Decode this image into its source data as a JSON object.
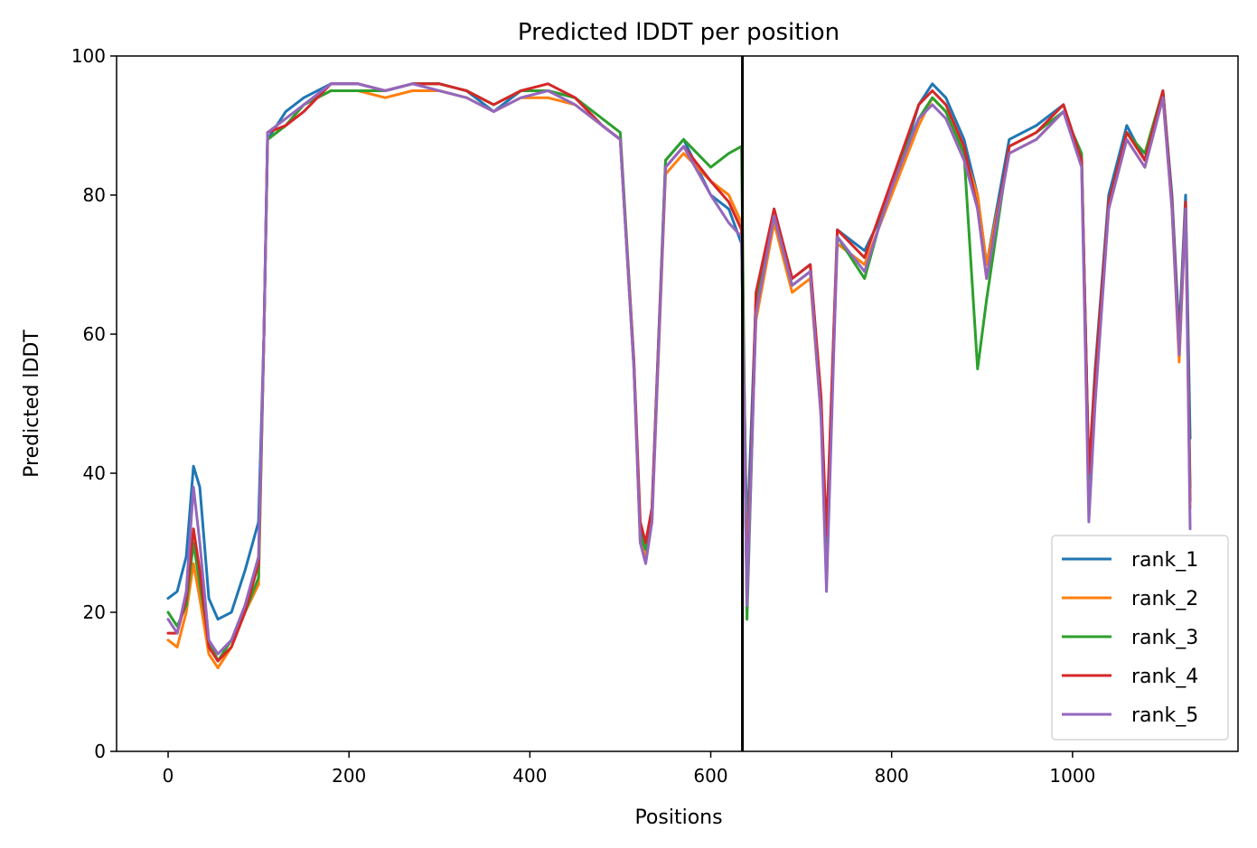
{
  "chart_data": {
    "type": "line",
    "title": "Predicted lDDT per position",
    "xlabel": "Positions",
    "ylabel": "Predicted lDDT",
    "xlim": [
      -57,
      1183
    ],
    "ylim": [
      0,
      100
    ],
    "xticks": [
      0,
      200,
      400,
      600,
      800,
      1000
    ],
    "yticks": [
      0,
      20,
      40,
      60,
      80,
      100
    ],
    "grid": false,
    "legend_position": "lower-right",
    "vertical_line": {
      "x": 635,
      "color": "#000000"
    },
    "colors": [
      "#1f77b4",
      "#ff7f0e",
      "#2ca02c",
      "#d62728",
      "#9467bd"
    ],
    "series": [
      {
        "name": "rank_1",
        "x": [
          0,
          10,
          20,
          28,
          35,
          45,
          55,
          70,
          85,
          100,
          106,
          110,
          130,
          150,
          180,
          210,
          240,
          270,
          300,
          330,
          360,
          390,
          420,
          450,
          480,
          500,
          515,
          522,
          528,
          535,
          550,
          570,
          600,
          620,
          634,
          640,
          650,
          670,
          690,
          710,
          722,
          728,
          740,
          770,
          800,
          830,
          845,
          860,
          880,
          895,
          905,
          930,
          960,
          990,
          1010,
          1018,
          1025,
          1040,
          1060,
          1080,
          1100,
          1110,
          1118,
          1125,
          1130
        ],
        "values": [
          22,
          23,
          28,
          41,
          38,
          22,
          19,
          20,
          26,
          33,
          60,
          88,
          92,
          94,
          96,
          96,
          95,
          96,
          96,
          95,
          92,
          95,
          95,
          94,
          90,
          88,
          55,
          32,
          30,
          35,
          85,
          88,
          80,
          78,
          73,
          30,
          65,
          78,
          68,
          70,
          50,
          30,
          75,
          72,
          80,
          93,
          96,
          94,
          88,
          80,
          70,
          88,
          90,
          93,
          85,
          40,
          55,
          80,
          90,
          85,
          95,
          80,
          60,
          80,
          45
        ]
      },
      {
        "name": "rank_2",
        "x": [
          0,
          10,
          20,
          28,
          35,
          45,
          55,
          70,
          85,
          100,
          106,
          110,
          130,
          150,
          180,
          210,
          240,
          270,
          300,
          330,
          360,
          390,
          420,
          450,
          480,
          500,
          515,
          522,
          528,
          535,
          550,
          570,
          600,
          620,
          634,
          640,
          650,
          670,
          690,
          710,
          722,
          728,
          740,
          770,
          800,
          830,
          845,
          860,
          880,
          895,
          905,
          930,
          960,
          990,
          1010,
          1018,
          1025,
          1040,
          1060,
          1080,
          1100,
          1110,
          1118,
          1125,
          1130
        ],
        "values": [
          16,
          15,
          20,
          27,
          22,
          14,
          12,
          15,
          20,
          24,
          60,
          88,
          90,
          93,
          95,
          95,
          94,
          95,
          95,
          94,
          92,
          94,
          94,
          93,
          90,
          88,
          55,
          30,
          28,
          33,
          83,
          86,
          82,
          80,
          76,
          25,
          62,
          76,
          66,
          68,
          48,
          28,
          73,
          70,
          80,
          90,
          94,
          92,
          86,
          80,
          70,
          86,
          88,
          92,
          85,
          38,
          52,
          78,
          88,
          84,
          94,
          78,
          56,
          78,
          35
        ]
      },
      {
        "name": "rank_3",
        "x": [
          0,
          10,
          20,
          28,
          35,
          45,
          55,
          70,
          85,
          100,
          106,
          110,
          130,
          150,
          180,
          210,
          240,
          270,
          300,
          330,
          360,
          390,
          420,
          450,
          480,
          500,
          515,
          522,
          528,
          535,
          550,
          570,
          600,
          620,
          634,
          640,
          650,
          670,
          690,
          710,
          722,
          728,
          740,
          770,
          800,
          830,
          845,
          860,
          880,
          895,
          905,
          930,
          960,
          990,
          1010,
          1018,
          1025,
          1040,
          1060,
          1080,
          1100,
          1110,
          1118,
          1125,
          1130
        ],
        "values": [
          20,
          18,
          21,
          30,
          24,
          16,
          13,
          16,
          20,
          25,
          60,
          88,
          90,
          93,
          95,
          95,
          95,
          96,
          96,
          95,
          93,
          95,
          95,
          94,
          91,
          89,
          56,
          31,
          29,
          34,
          85,
          88,
          84,
          86,
          87,
          19,
          64,
          77,
          67,
          69,
          49,
          29,
          74,
          68,
          82,
          91,
          94,
          92,
          86,
          55,
          65,
          87,
          89,
          92,
          86,
          39,
          53,
          79,
          89,
          86,
          95,
          79,
          58,
          79,
          38
        ]
      },
      {
        "name": "rank_4",
        "x": [
          0,
          10,
          20,
          28,
          35,
          45,
          55,
          70,
          85,
          100,
          106,
          110,
          130,
          150,
          180,
          210,
          240,
          270,
          300,
          330,
          360,
          390,
          420,
          450,
          480,
          500,
          515,
          522,
          528,
          535,
          550,
          570,
          600,
          620,
          634,
          640,
          650,
          670,
          690,
          710,
          722,
          728,
          740,
          770,
          800,
          830,
          845,
          860,
          880,
          895,
          905,
          930,
          960,
          990,
          1010,
          1018,
          1025,
          1040,
          1060,
          1080,
          1100,
          1110,
          1118,
          1125,
          1130
        ],
        "values": [
          17,
          17,
          22,
          32,
          26,
          15,
          13,
          15,
          20,
          27,
          60,
          89,
          90,
          92,
          96,
          96,
          95,
          96,
          96,
          95,
          93,
          95,
          96,
          94,
          90,
          88,
          56,
          33,
          30,
          35,
          84,
          87,
          82,
          79,
          75,
          22,
          66,
          78,
          68,
          70,
          51,
          31,
          75,
          71,
          82,
          93,
          95,
          93,
          87,
          78,
          68,
          87,
          89,
          93,
          85,
          40,
          54,
          79,
          89,
          85,
          95,
          79,
          58,
          79,
          36
        ]
      },
      {
        "name": "rank_5",
        "x": [
          0,
          10,
          20,
          28,
          35,
          45,
          55,
          70,
          85,
          100,
          106,
          110,
          130,
          150,
          180,
          210,
          240,
          270,
          300,
          330,
          360,
          390,
          420,
          450,
          480,
          500,
          515,
          522,
          528,
          535,
          550,
          570,
          600,
          620,
          634,
          640,
          650,
          670,
          690,
          710,
          722,
          728,
          740,
          770,
          800,
          830,
          845,
          860,
          880,
          895,
          905,
          930,
          960,
          990,
          1010,
          1018,
          1025,
          1040,
          1060,
          1080,
          1100,
          1110,
          1118,
          1125,
          1130
        ],
        "values": [
          19,
          17,
          23,
          38,
          30,
          16,
          14,
          16,
          21,
          28,
          60,
          89,
          91,
          93,
          96,
          96,
          95,
          96,
          95,
          94,
          92,
          94,
          95,
          93,
          90,
          88,
          55,
          30,
          27,
          33,
          84,
          87,
          80,
          76,
          74,
          21,
          63,
          77,
          67,
          69,
          48,
          23,
          74,
          69,
          81,
          91,
          93,
          91,
          85,
          78,
          68,
          86,
          88,
          92,
          84,
          33,
          50,
          78,
          88,
          84,
          94,
          78,
          57,
          78,
          32
        ]
      }
    ]
  }
}
